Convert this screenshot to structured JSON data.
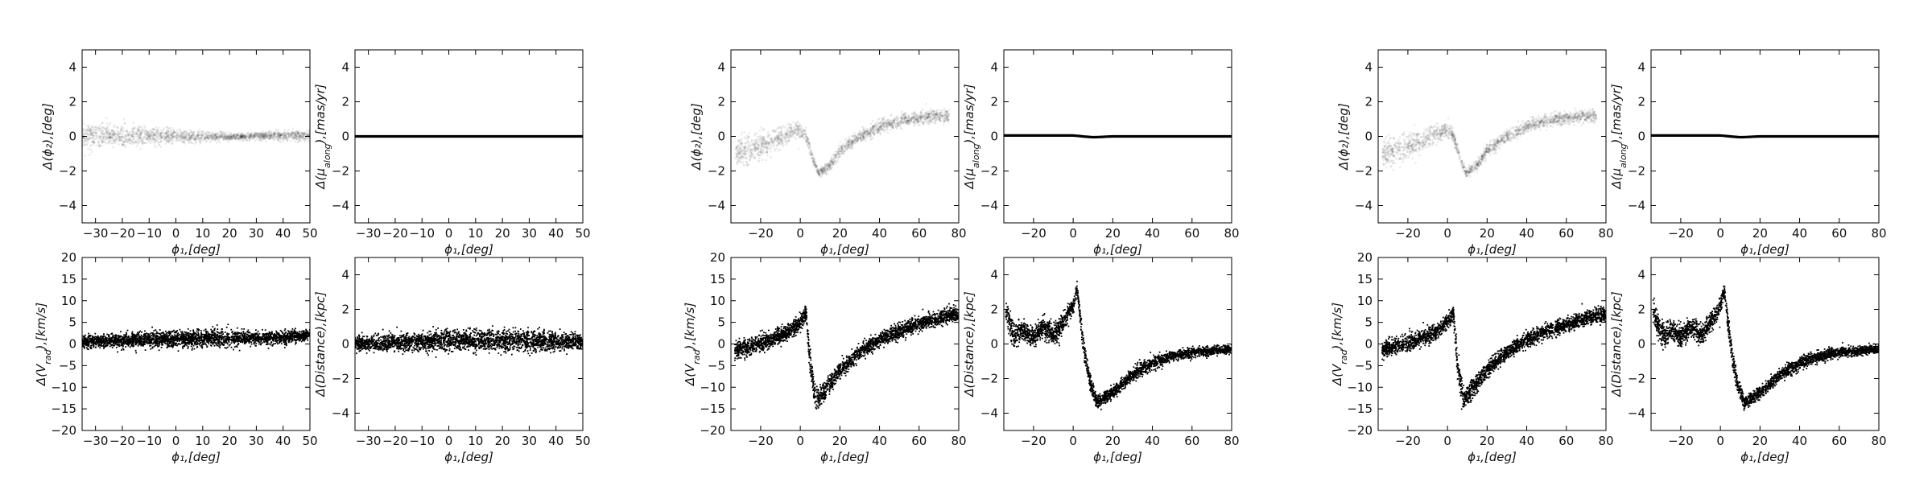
{
  "figure": {
    "groups": [
      {
        "name": "group-1",
        "x_range": [
          -35,
          50
        ],
        "x_ticks": [
          -30,
          -20,
          -10,
          0,
          10,
          20,
          30,
          40,
          50
        ],
        "panels": [
          "phi2",
          "pm",
          "vrad",
          "dist"
        ]
      },
      {
        "name": "group-2",
        "x_range": [
          -35,
          80
        ],
        "x_ticks": [
          -20,
          0,
          20,
          40,
          60,
          80
        ],
        "panels": [
          "phi2",
          "pm",
          "vrad",
          "dist"
        ]
      },
      {
        "name": "group-3",
        "x_range": [
          -35,
          80
        ],
        "x_ticks": [
          -20,
          0,
          20,
          40,
          60,
          80
        ],
        "panels": [
          "phi2",
          "pm",
          "vrad",
          "dist"
        ]
      }
    ]
  },
  "chart_data": [
    {
      "type": "scatter",
      "panel": "A1",
      "group": 1,
      "xlabel": "ϕ₁,[deg]",
      "ylabel": "Δ(ϕ₂),[deg]",
      "xlim": [
        -35,
        50
      ],
      "ylim": [
        -5,
        5
      ],
      "yticks": [
        -4,
        -2,
        0,
        2,
        4
      ],
      "style": "faint grey density",
      "series": [
        {
          "x": [
            -35,
            -25,
            -15,
            -5,
            5,
            15,
            25,
            35,
            45,
            50
          ],
          "y": [
            0.05,
            0.05,
            0.0,
            0.0,
            0.0,
            0.0,
            0.0,
            0.05,
            0.05,
            0.05
          ],
          "spread": [
            0.55,
            0.55,
            0.5,
            0.4,
            0.3,
            0.2,
            0.15,
            0.2,
            0.25,
            0.25
          ]
        }
      ]
    },
    {
      "type": "scatter",
      "panel": "B1",
      "group": 1,
      "xlabel": "ϕ₁,[deg]",
      "ylabel": "Δ(μ_along),[mas/yr]",
      "xlim": [
        -35,
        50
      ],
      "ylim": [
        -5,
        5
      ],
      "yticks": [
        -4,
        -2,
        0,
        2,
        4
      ],
      "style": "thin black line",
      "series": [
        {
          "x": [
            -35,
            50
          ],
          "y": [
            0,
            0
          ],
          "spread": [
            0.04,
            0.04
          ]
        }
      ]
    },
    {
      "type": "scatter",
      "panel": "C1",
      "group": 1,
      "xlabel": "ϕ₁,[deg]",
      "ylabel": "Δ(V_rad),[km/s]",
      "xlim": [
        -35,
        50
      ],
      "ylim": [
        -20,
        20
      ],
      "yticks": [
        -20,
        -15,
        -10,
        -5,
        0,
        5,
        10,
        15,
        20
      ],
      "style": "black points",
      "series": [
        {
          "x": [
            -35,
            -20,
            -5,
            10,
            25,
            40,
            48,
            50
          ],
          "y": [
            0.5,
            0.8,
            1.0,
            1.2,
            1.3,
            1.5,
            2.0,
            2.2
          ],
          "spread": [
            1.3,
            1.4,
            1.5,
            1.5,
            1.4,
            1.3,
            1.0,
            0.8
          ]
        }
      ]
    },
    {
      "type": "scatter",
      "panel": "D1",
      "group": 1,
      "xlabel": "ϕ₁,[deg]",
      "ylabel": "Δ(Distance),[kpc]",
      "xlim": [
        -35,
        50
      ],
      "ylim": [
        -5,
        5
      ],
      "yticks": [
        -4,
        -2,
        0,
        2,
        4
      ],
      "style": "black points",
      "series": [
        {
          "x": [
            -35,
            -20,
            -5,
            10,
            25,
            40,
            50
          ],
          "y": [
            0.0,
            0.1,
            0.15,
            0.2,
            0.2,
            0.15,
            0.1
          ],
          "spread": [
            0.35,
            0.4,
            0.45,
            0.5,
            0.5,
            0.45,
            0.35
          ]
        }
      ]
    },
    {
      "type": "scatter",
      "panel": "A2",
      "group": 2,
      "xlabel": "ϕ₁,[deg]",
      "ylabel": "Δ(ϕ₂),[deg]",
      "xlim": [
        -35,
        80
      ],
      "ylim": [
        -5,
        5
      ],
      "yticks": [
        -4,
        -2,
        0,
        2,
        4
      ],
      "style": "faint grey density",
      "series": [
        {
          "x": [
            -33,
            -25,
            -15,
            -8,
            -3,
            0,
            3,
            6,
            9,
            14,
            20,
            30,
            40,
            50,
            60,
            70,
            75
          ],
          "y": [
            -1.0,
            -0.8,
            -0.3,
            0.1,
            0.3,
            0.4,
            0.0,
            -1.2,
            -2.1,
            -1.8,
            -0.8,
            0.0,
            0.6,
            0.9,
            1.1,
            1.2,
            1.2
          ],
          "spread": [
            0.7,
            0.7,
            0.6,
            0.5,
            0.4,
            0.35,
            0.3,
            0.25,
            0.2,
            0.25,
            0.3,
            0.3,
            0.3,
            0.3,
            0.3,
            0.3,
            0.3
          ]
        }
      ]
    },
    {
      "type": "scatter",
      "panel": "B2",
      "group": 2,
      "xlabel": "ϕ₁,[deg]",
      "ylabel": "Δ(μ_along),[mas/yr]",
      "xlim": [
        -35,
        80
      ],
      "ylim": [
        -5,
        5
      ],
      "yticks": [
        -4,
        -2,
        0,
        2,
        4
      ],
      "style": "thin black line",
      "series": [
        {
          "x": [
            -35,
            0,
            10,
            20,
            80
          ],
          "y": [
            0.05,
            0.05,
            -0.05,
            0.0,
            0.0
          ],
          "spread": [
            0.06,
            0.06,
            0.06,
            0.05,
            0.05
          ]
        }
      ]
    },
    {
      "type": "scatter",
      "panel": "C2",
      "group": 2,
      "xlabel": "ϕ₁,[deg]",
      "ylabel": "Δ(V_rad),[km/s]",
      "xlim": [
        -35,
        80
      ],
      "ylim": [
        -20,
        20
      ],
      "yticks": [
        -20,
        -15,
        -10,
        -5,
        0,
        5,
        10,
        15,
        20
      ],
      "style": "black points",
      "series": [
        {
          "x": [
            -33,
            -25,
            -15,
            -5,
            0,
            3,
            5,
            8,
            12,
            20,
            30,
            40,
            50,
            60,
            70,
            80
          ],
          "y": [
            -1.5,
            -0.5,
            1.0,
            3.0,
            5.0,
            7.5,
            -5.0,
            -13.0,
            -11.0,
            -6.0,
            -2.0,
            1.0,
            3.0,
            4.5,
            6.0,
            7.0
          ],
          "spread": [
            1.5,
            1.6,
            1.6,
            1.5,
            1.5,
            1.5,
            2.5,
            2.0,
            1.8,
            1.5,
            1.4,
            1.4,
            1.4,
            1.4,
            1.4,
            1.4
          ]
        }
      ]
    },
    {
      "type": "scatter",
      "panel": "D2",
      "group": 2,
      "xlabel": "ϕ₁,[deg]",
      "ylabel": "Δ(Distance),[kpc]",
      "xlim": [
        -35,
        80
      ],
      "ylim": [
        -5,
        5
      ],
      "yticks": [
        -4,
        -2,
        0,
        2,
        4
      ],
      "style": "black points",
      "series": [
        {
          "x": [
            -34,
            -30,
            -25,
            -20,
            -15,
            -10,
            -5,
            0,
            2,
            5,
            8,
            12,
            20,
            30,
            40,
            50,
            60,
            70,
            80
          ],
          "y": [
            2.0,
            0.5,
            0.8,
            0.4,
            1.0,
            0.5,
            1.2,
            2.2,
            3.2,
            0.0,
            -2.0,
            -3.4,
            -2.8,
            -1.8,
            -1.1,
            -0.7,
            -0.5,
            -0.4,
            -0.3
          ],
          "spread": [
            0.6,
            0.6,
            0.5,
            0.5,
            0.5,
            0.5,
            0.5,
            0.4,
            0.3,
            0.5,
            0.4,
            0.3,
            0.3,
            0.3,
            0.3,
            0.25,
            0.25,
            0.2,
            0.2
          ]
        }
      ]
    },
    {
      "type": "scatter",
      "panel": "A3",
      "group": 3,
      "xlabel": "ϕ₁,[deg]",
      "ylabel": "Δ(ϕ₂),[deg]",
      "xlim": [
        -35,
        80
      ],
      "ylim": [
        -5,
        5
      ],
      "yticks": [
        -4,
        -2,
        0,
        2,
        4
      ],
      "style": "faint grey density",
      "series": [
        {
          "x": [
            -33,
            -25,
            -15,
            -8,
            -3,
            0,
            3,
            6,
            9,
            14,
            20,
            30,
            40,
            50,
            60,
            70,
            75
          ],
          "y": [
            -1.0,
            -0.8,
            -0.3,
            0.1,
            0.3,
            0.4,
            0.0,
            -1.2,
            -2.1,
            -1.8,
            -0.8,
            0.0,
            0.6,
            0.9,
            1.1,
            1.2,
            1.2
          ],
          "spread": [
            0.7,
            0.7,
            0.6,
            0.5,
            0.4,
            0.35,
            0.3,
            0.25,
            0.2,
            0.25,
            0.3,
            0.3,
            0.3,
            0.3,
            0.3,
            0.3,
            0.3
          ]
        }
      ]
    },
    {
      "type": "scatter",
      "panel": "B3",
      "group": 3,
      "xlabel": "ϕ₁,[deg]",
      "ylabel": "Δ(μ_along),[mas/yr]",
      "xlim": [
        -35,
        80
      ],
      "ylim": [
        -5,
        5
      ],
      "yticks": [
        -4,
        -2,
        0,
        2,
        4
      ],
      "style": "thin black line",
      "series": [
        {
          "x": [
            -35,
            0,
            10,
            20,
            80
          ],
          "y": [
            0.05,
            0.05,
            -0.05,
            0.0,
            0.0
          ],
          "spread": [
            0.06,
            0.06,
            0.06,
            0.05,
            0.05
          ]
        }
      ]
    },
    {
      "type": "scatter",
      "panel": "C3",
      "group": 3,
      "xlabel": "ϕ₁,[deg]",
      "ylabel": "Δ(V_rad),[km/s]",
      "xlim": [
        -35,
        80
      ],
      "ylim": [
        -20,
        20
      ],
      "yticks": [
        -20,
        -15,
        -10,
        -5,
        0,
        5,
        10,
        15,
        20
      ],
      "style": "black points",
      "series": [
        {
          "x": [
            -33,
            -25,
            -15,
            -5,
            0,
            3,
            5,
            8,
            12,
            20,
            30,
            40,
            50,
            60,
            70,
            80
          ],
          "y": [
            -1.5,
            -0.5,
            1.0,
            3.0,
            5.0,
            7.5,
            -5.0,
            -13.0,
            -11.0,
            -6.0,
            -2.0,
            1.0,
            3.0,
            4.5,
            6.0,
            7.0
          ],
          "spread": [
            1.5,
            1.6,
            1.6,
            1.5,
            1.5,
            1.5,
            2.5,
            2.0,
            1.8,
            1.5,
            1.4,
            1.4,
            1.4,
            1.4,
            1.4,
            1.4
          ]
        }
      ]
    },
    {
      "type": "scatter",
      "panel": "D3",
      "group": 3,
      "xlabel": "ϕ₁,[deg]",
      "ylabel": "Δ(Distance),[kpc]",
      "xlim": [
        -35,
        80
      ],
      "ylim": [
        -5,
        5
      ],
      "yticks": [
        -4,
        -2,
        0,
        2,
        4
      ],
      "style": "black points",
      "series": [
        {
          "x": [
            -34,
            -30,
            -25,
            -20,
            -15,
            -10,
            -5,
            0,
            2,
            5,
            8,
            12,
            20,
            30,
            40,
            50,
            60,
            70,
            80
          ],
          "y": [
            2.0,
            0.5,
            0.8,
            0.4,
            1.0,
            0.5,
            1.2,
            2.2,
            3.2,
            0.0,
            -2.0,
            -3.4,
            -2.8,
            -1.8,
            -1.1,
            -0.7,
            -0.5,
            -0.4,
            -0.3
          ],
          "spread": [
            0.6,
            0.6,
            0.5,
            0.5,
            0.5,
            0.5,
            0.5,
            0.4,
            0.3,
            0.5,
            0.4,
            0.3,
            0.3,
            0.3,
            0.3,
            0.25,
            0.25,
            0.2,
            0.2
          ]
        }
      ]
    }
  ]
}
